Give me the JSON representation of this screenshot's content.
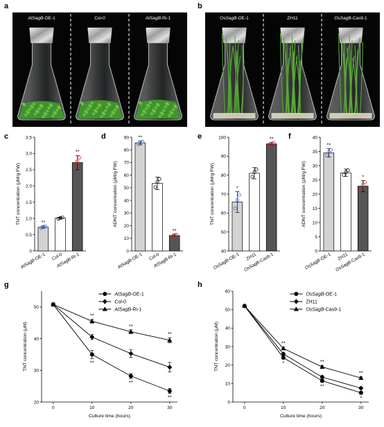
{
  "panels": {
    "a": {
      "letter": "a",
      "captions": [
        {
          "prefix": "AtSagB",
          "suffix": "-OE-1"
        },
        {
          "prefix": "",
          "suffix": "Col-0"
        },
        {
          "prefix": "AtSagB",
          "suffix": "-Ri-1"
        }
      ],
      "colors": {
        "background": "#050505",
        "plant": "#3f9a2a"
      }
    },
    "b": {
      "letter": "b",
      "captions": [
        {
          "prefix": "OsSagB",
          "suffix": "-OE-1"
        },
        {
          "prefix": "",
          "suffix": "ZH11"
        },
        {
          "prefix": "OsSagB",
          "suffix": "-Cas9-1"
        }
      ],
      "colors": {
        "background": "#050505",
        "plant": "#5aa836"
      }
    }
  },
  "chart_data": [
    {
      "panel": "c",
      "type": "bar",
      "ylabel": "TNT concentration (μM/g FW)",
      "ylim": [
        0,
        3.5
      ],
      "yticks": [
        "0",
        "0.5",
        "1.0",
        "1.5",
        "2.0",
        "2.5",
        "3.0",
        "3.5"
      ],
      "categories": [
        "AtSagB-OE-1",
        "Col-0",
        "AtSagB-Ri-1"
      ],
      "values": [
        0.73,
        1.01,
        2.72
      ],
      "errors": [
        0.04,
        0.03,
        0.22
      ],
      "significance": [
        "**",
        "",
        "**"
      ],
      "colors": [
        "#d3d3d3",
        "#ffffff",
        "#555555"
      ],
      "dot_colors": [
        "#4169e1",
        "#111111",
        "#d93030"
      ]
    },
    {
      "panel": "d",
      "type": "bar",
      "ylabel": "ADNT concentration (μM/g FW)",
      "ylim": [
        0,
        90
      ],
      "yticks": [
        "0",
        "10",
        "20",
        "30",
        "40",
        "50",
        "60",
        "70",
        "80",
        "90"
      ],
      "categories": [
        "AtSagB-OE-1",
        "Col-0",
        "AtSagB-Ri-1"
      ],
      "values": [
        85.5,
        53.5,
        12.2
      ],
      "errors": [
        1.5,
        5.0,
        1.0
      ],
      "significance": [
        "**",
        "",
        "**"
      ],
      "colors": [
        "#d3d3d3",
        "#ffffff",
        "#555555"
      ],
      "dot_colors": [
        "#4169e1",
        "#111111",
        "#d93030"
      ]
    },
    {
      "panel": "e",
      "type": "bar",
      "ylabel": "TNT concentration (μM/g FW)",
      "ylim": [
        40,
        100
      ],
      "yticks": [
        "40",
        "50",
        "60",
        "70",
        "80",
        "90",
        "100"
      ],
      "categories": [
        "OsSagB-OE-1",
        "ZH11",
        "OsSagB-Cas9-1"
      ],
      "values": [
        65.8,
        81.0,
        96.5
      ],
      "errors": [
        5.5,
        3.0,
        0.8
      ],
      "significance": [
        "*",
        "",
        "**"
      ],
      "colors": [
        "#d3d3d3",
        "#ffffff",
        "#555555"
      ],
      "dot_colors": [
        "#4169e1",
        "#111111",
        "#d93030"
      ]
    },
    {
      "panel": "f",
      "type": "bar",
      "ylabel": "ADNT concentration (μM/g FW)",
      "ylim": [
        0,
        40
      ],
      "yticks": [
        "0",
        "5",
        "10",
        "15",
        "20",
        "25",
        "30",
        "35",
        "40"
      ],
      "categories": [
        "OsSagB-OE-1",
        "ZH11",
        "OsSagB-Cas9-1"
      ],
      "values": [
        34.5,
        27.5,
        22.8
      ],
      "errors": [
        1.5,
        1.3,
        2.0
      ],
      "significance": [
        "**",
        "",
        "*"
      ],
      "colors": [
        "#d3d3d3",
        "#ffffff",
        "#555555"
      ],
      "dot_colors": [
        "#4169e1",
        "#111111",
        "#d93030"
      ]
    },
    {
      "panel": "g",
      "type": "line",
      "xlabel": "Culture time (hours)",
      "ylabel": "TNT concentration (μM)",
      "xlim": [
        -3,
        32
      ],
      "ylim": [
        20,
        55
      ],
      "xticks": [
        "0",
        "10",
        "20",
        "30"
      ],
      "yticks": [
        "20",
        "30",
        "40",
        "50"
      ],
      "x": [
        0,
        10,
        20,
        30
      ],
      "series": [
        {
          "name_prefix": "AtSagB",
          "name_suffix": "-OE-1",
          "marker": "circle",
          "values": [
            50.8,
            35.0,
            28.2,
            23.5
          ],
          "errors": [
            0.5,
            1.3,
            0.8,
            0.8
          ],
          "significance": [
            "",
            "**",
            "**",
            "**"
          ],
          "sig_pos": "below"
        },
        {
          "name_prefix": "",
          "name_suffix": "Col-0",
          "marker": "diamond",
          "values": [
            50.8,
            40.5,
            35.3,
            31.0
          ],
          "errors": [
            0.5,
            0.8,
            1.2,
            1.5
          ],
          "significance": [
            "",
            "",
            "",
            ""
          ],
          "sig_pos": "none"
        },
        {
          "name_prefix": "AtSagB",
          "name_suffix": "-Ri-1",
          "marker": "triangle",
          "values": [
            50.8,
            45.5,
            42.2,
            39.5
          ],
          "errors": [
            0.5,
            0.6,
            0.6,
            0.8
          ],
          "significance": [
            "",
            "**",
            "**",
            "**"
          ],
          "sig_pos": "above"
        }
      ]
    },
    {
      "panel": "h",
      "type": "line",
      "xlabel": "Culture time (hours)",
      "ylabel": "TNT concentration (μM)",
      "xlim": [
        -3,
        32
      ],
      "ylim": [
        0,
        60
      ],
      "xticks": [
        "0",
        "10",
        "20",
        "30"
      ],
      "yticks": [
        "0",
        "10",
        "20",
        "30",
        "40",
        "50",
        "60"
      ],
      "x": [
        0,
        10,
        20,
        30
      ],
      "series": [
        {
          "name_prefix": "OsSagB",
          "name_suffix": "-OE-1",
          "marker": "circle",
          "values": [
            52.0,
            24.0,
            11.5,
            5.0
          ],
          "errors": [
            0.5,
            0.8,
            0.8,
            0.6
          ],
          "significance": [
            "",
            "*",
            "**",
            "*"
          ],
          "sig_pos": "below"
        },
        {
          "name_prefix": "",
          "name_suffix": "ZH11",
          "marker": "diamond",
          "values": [
            52.0,
            26.0,
            13.5,
            7.5
          ],
          "errors": [
            0.5,
            0.8,
            0.8,
            0.6
          ],
          "significance": [
            "",
            "",
            "",
            ""
          ],
          "sig_pos": "none"
        },
        {
          "name_prefix": "OsSagB",
          "name_suffix": "-Cas9-1",
          "marker": "triangle",
          "values": [
            52.0,
            29.0,
            19.0,
            13.0
          ],
          "errors": [
            0.5,
            0.8,
            0.8,
            0.8
          ],
          "significance": [
            "",
            "**",
            "**",
            "**"
          ],
          "sig_pos": "above"
        }
      ]
    }
  ]
}
